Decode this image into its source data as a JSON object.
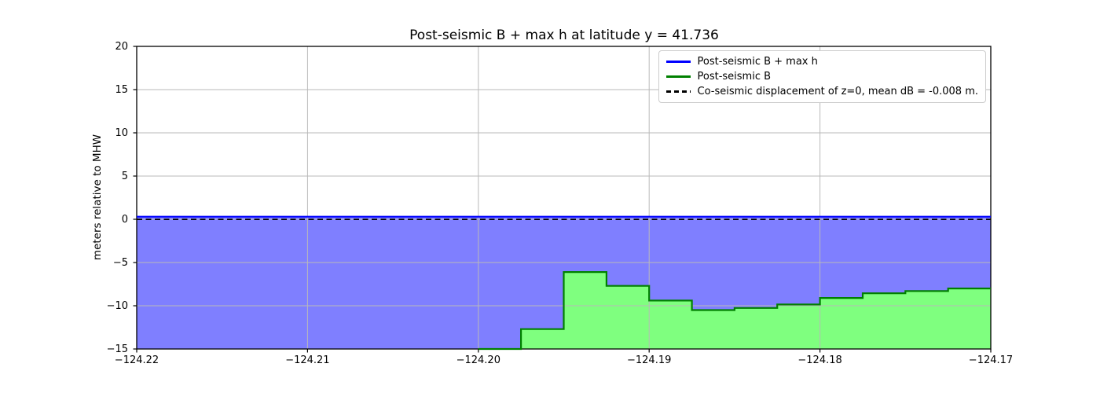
{
  "figure": {
    "title": "Post-seismic B + max h at latitude y = 41.736"
  },
  "chart_data": {
    "type": "line",
    "title": "Post-seismic B + max h at latitude y = 41.736",
    "xlabel": "",
    "ylabel": "meters relative to MHW",
    "xlim": [
      -124.22,
      -124.17
    ],
    "ylim": [
      -15,
      20
    ],
    "x_ticks": [
      -124.22,
      -124.21,
      -124.2,
      -124.19,
      -124.18,
      -124.17
    ],
    "x_tick_labels": [
      "−124.22",
      "−124.21",
      "−124.20",
      "−124.19",
      "−124.18",
      "−124.17"
    ],
    "y_ticks": [
      20,
      15,
      10,
      5,
      0,
      -5,
      -10,
      -15
    ],
    "y_tick_labels": [
      "20",
      "15",
      "10",
      "5",
      "0",
      "−5",
      "−10",
      "−15"
    ],
    "grid": true,
    "grid_color": "#b9b9b9",
    "background": "#ffffff",
    "legend_position": "upper right",
    "series": [
      {
        "name": "Post-seismic B + max h",
        "type": "line",
        "color": "#0000ff",
        "fill_color": "rgba(0,0,255,0.5)",
        "points": [
          [
            -124.22,
            0.3
          ],
          [
            -124.17,
            0.3
          ]
        ]
      },
      {
        "name": "Post-seismic B",
        "type": "step",
        "color": "#008000",
        "fill_color": "rgba(0,255,0,0.5)",
        "steps": [
          [
            -124.2,
            -15.0
          ],
          [
            -124.1975,
            -12.7
          ],
          [
            -124.195,
            -6.1
          ],
          [
            -124.1925,
            -7.7
          ],
          [
            -124.19,
            -9.4
          ],
          [
            -124.1875,
            -10.5
          ],
          [
            -124.185,
            -10.25
          ],
          [
            -124.1825,
            -9.85
          ],
          [
            -124.18,
            -9.1
          ],
          [
            -124.1775,
            -8.55
          ],
          [
            -124.175,
            -8.3
          ],
          [
            -124.1725,
            -8.0
          ]
        ],
        "x_end": -124.17
      },
      {
        "name": "Co-seismic displacement of z=0, mean dB = -0.008 m.",
        "type": "hline_dashed",
        "color": "#000000",
        "value": -0.008
      }
    ]
  }
}
